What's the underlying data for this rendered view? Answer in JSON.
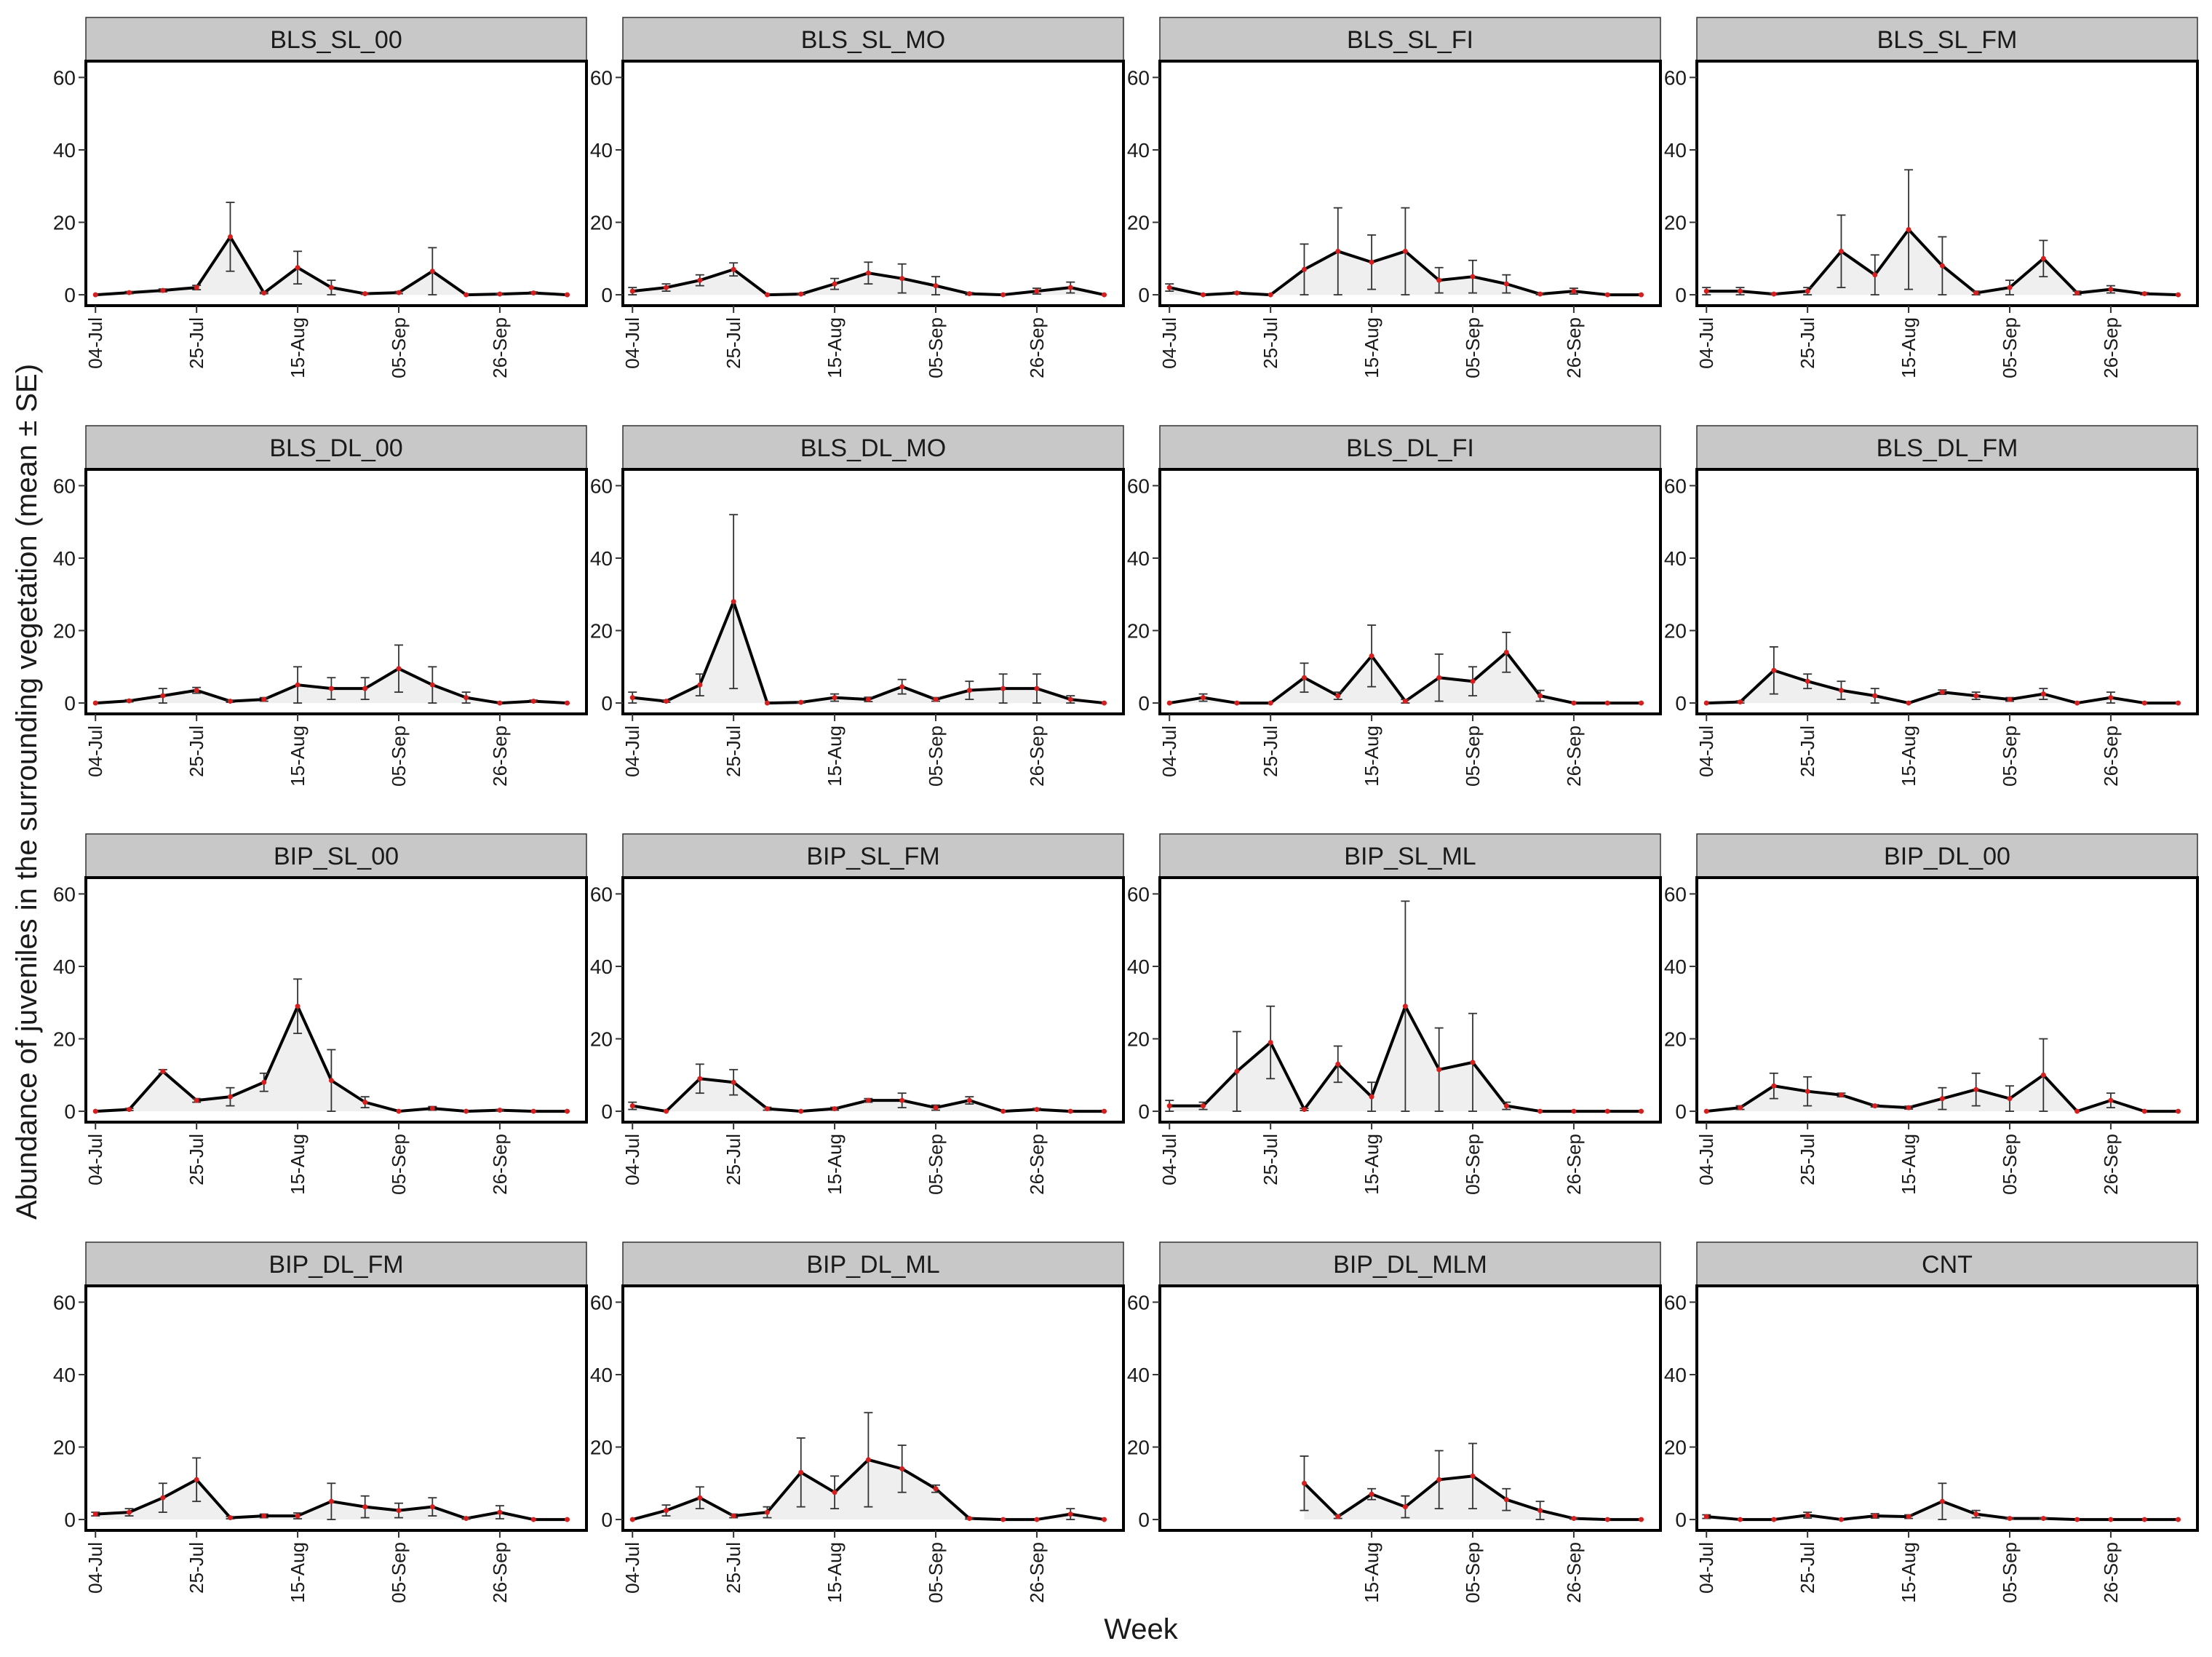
{
  "chart_data": {
    "type": "line",
    "xlabel": "Week",
    "ylabel": "Abundance of juveniles in the surrounding vegetation (mean ± SE)",
    "ylim": [
      0,
      60
    ],
    "yticks": [
      0,
      20,
      40,
      60
    ],
    "x_unit": "date (2021-style weekly sampling, Jul–Oct)",
    "xticks": [
      "04-Jul",
      "25-Jul",
      "15-Aug",
      "05-Sep",
      "26-Sep"
    ],
    "xticks_last_panel_row_exception": {
      "BIP_DL_MLM": [
        "15-Aug",
        "05-Sep",
        "26-Sep"
      ]
    },
    "x_dates": [
      "04-Jul",
      "11-Jul",
      "18-Jul",
      "25-Jul",
      "01-Aug",
      "08-Aug",
      "15-Aug",
      "22-Aug",
      "29-Aug",
      "05-Sep",
      "12-Sep",
      "19-Sep",
      "26-Sep",
      "03-Oct",
      "10-Oct"
    ],
    "panels": [
      {
        "name": "BLS_SL_00",
        "x": [
          "04-Jul",
          "11-Jul",
          "18-Jul",
          "25-Jul",
          "01-Aug",
          "08-Aug",
          "15-Aug",
          "22-Aug",
          "29-Aug",
          "05-Sep",
          "12-Sep",
          "19-Sep",
          "26-Sep",
          "03-Oct",
          "10-Oct"
        ],
        "y": [
          0,
          0.6,
          1.2,
          2,
          16,
          0.5,
          7.5,
          2,
          0.3,
          0.6,
          6.5,
          0,
          0.2,
          0.5,
          0
        ],
        "se": [
          0,
          0.3,
          0.4,
          0.6,
          9.5,
          0.2,
          4.5,
          2,
          0.2,
          0.3,
          6.5,
          0,
          0.1,
          0.3,
          0
        ]
      },
      {
        "name": "BLS_SL_MO",
        "x": [
          "04-Jul",
          "11-Jul",
          "18-Jul",
          "25-Jul",
          "01-Aug",
          "08-Aug",
          "15-Aug",
          "22-Aug",
          "29-Aug",
          "05-Sep",
          "12-Sep",
          "19-Sep",
          "26-Sep",
          "03-Oct",
          "10-Oct"
        ],
        "y": [
          1,
          2,
          4,
          7,
          0,
          0.2,
          3,
          6,
          4.5,
          2.5,
          0.3,
          0,
          1,
          2,
          0
        ],
        "se": [
          1,
          1,
          1.5,
          1.8,
          0,
          0.2,
          1.5,
          3,
          4,
          2.5,
          0.3,
          0,
          0.8,
          1.5,
          0
        ]
      },
      {
        "name": "BLS_SL_FI",
        "x": [
          "04-Jul",
          "11-Jul",
          "18-Jul",
          "25-Jul",
          "01-Aug",
          "08-Aug",
          "15-Aug",
          "22-Aug",
          "29-Aug",
          "05-Sep",
          "12-Sep",
          "19-Sep",
          "26-Sep",
          "03-Oct",
          "10-Oct"
        ],
        "y": [
          2,
          0,
          0.5,
          0,
          7,
          12,
          9,
          12,
          4,
          5,
          3,
          0.2,
          1,
          0,
          0
        ],
        "se": [
          1,
          0,
          0.3,
          0,
          7,
          12,
          7.5,
          12,
          3.5,
          4.5,
          2.5,
          0.2,
          0.8,
          0,
          0
        ]
      },
      {
        "name": "BLS_SL_FM",
        "x": [
          "04-Jul",
          "11-Jul",
          "18-Jul",
          "25-Jul",
          "01-Aug",
          "08-Aug",
          "15-Aug",
          "22-Aug",
          "29-Aug",
          "05-Sep",
          "12-Sep",
          "19-Sep",
          "26-Sep",
          "03-Oct",
          "10-Oct"
        ],
        "y": [
          1,
          1,
          0.2,
          1,
          12,
          5.5,
          18,
          8,
          0.5,
          2,
          10,
          0.5,
          1.5,
          0.3,
          0
        ],
        "se": [
          1,
          1,
          0.2,
          1,
          10,
          5.5,
          16.5,
          8,
          0.5,
          2,
          5,
          0.5,
          1,
          0.3,
          0
        ]
      },
      {
        "name": "BLS_DL_00",
        "x": [
          "04-Jul",
          "11-Jul",
          "18-Jul",
          "25-Jul",
          "01-Aug",
          "08-Aug",
          "15-Aug",
          "22-Aug",
          "29-Aug",
          "05-Sep",
          "12-Sep",
          "19-Sep",
          "26-Sep",
          "03-Oct",
          "10-Oct"
        ],
        "y": [
          0,
          0.6,
          2,
          3.5,
          0.5,
          1,
          5,
          4,
          4,
          9.5,
          5,
          1.5,
          0,
          0.5,
          0
        ],
        "se": [
          0,
          0.3,
          2,
          0.8,
          0.3,
          0.5,
          5,
          3,
          3,
          6.5,
          5,
          1.5,
          0,
          0.3,
          0
        ]
      },
      {
        "name": "BLS_DL_MO",
        "x": [
          "04-Jul",
          "11-Jul",
          "18-Jul",
          "25-Jul",
          "01-Aug",
          "08-Aug",
          "15-Aug",
          "22-Aug",
          "29-Aug",
          "05-Sep",
          "12-Sep",
          "19-Sep",
          "26-Sep",
          "03-Oct",
          "10-Oct"
        ],
        "y": [
          1.5,
          0.5,
          5,
          28,
          0,
          0.2,
          1.5,
          1,
          4.5,
          1,
          3.5,
          4,
          4,
          1,
          0
        ],
        "se": [
          1.5,
          0.3,
          3,
          24,
          0,
          0.2,
          1,
          0.6,
          2,
          0.5,
          2.5,
          4,
          4,
          1,
          0
        ]
      },
      {
        "name": "BLS_DL_FI",
        "x": [
          "04-Jul",
          "11-Jul",
          "18-Jul",
          "25-Jul",
          "01-Aug",
          "08-Aug",
          "15-Aug",
          "22-Aug",
          "29-Aug",
          "05-Sep",
          "12-Sep",
          "19-Sep",
          "26-Sep",
          "03-Oct",
          "10-Oct"
        ],
        "y": [
          0,
          1.5,
          0,
          0,
          7,
          2,
          13,
          0.5,
          7,
          6,
          14,
          2,
          0,
          0,
          0
        ],
        "se": [
          0,
          1,
          0,
          0,
          4,
          1,
          8.5,
          0.5,
          6.5,
          4,
          5.5,
          1.5,
          0,
          0,
          0
        ]
      },
      {
        "name": "BLS_DL_FM",
        "x": [
          "04-Jul",
          "11-Jul",
          "18-Jul",
          "25-Jul",
          "01-Aug",
          "08-Aug",
          "15-Aug",
          "22-Aug",
          "29-Aug",
          "05-Sep",
          "12-Sep",
          "19-Sep",
          "26-Sep",
          "03-Oct",
          "10-Oct"
        ],
        "y": [
          0,
          0.3,
          9,
          6,
          3.5,
          2,
          0,
          3,
          2,
          1,
          2.5,
          0,
          1.5,
          0,
          0
        ],
        "se": [
          0,
          0.3,
          6.5,
          2,
          2.5,
          2,
          0,
          0.6,
          1,
          0.5,
          1.5,
          0,
          1.5,
          0,
          0
        ]
      },
      {
        "name": "BIP_SL_00",
        "x": [
          "04-Jul",
          "11-Jul",
          "18-Jul",
          "25-Jul",
          "01-Aug",
          "08-Aug",
          "15-Aug",
          "22-Aug",
          "29-Aug",
          "05-Sep",
          "12-Sep",
          "19-Sep",
          "26-Sep",
          "03-Oct",
          "10-Oct"
        ],
        "y": [
          0,
          0.5,
          11,
          3,
          4,
          8,
          29,
          8.5,
          2.5,
          0,
          0.8,
          0,
          0.3,
          0,
          0
        ],
        "se": [
          0,
          0.3,
          0.5,
          0.5,
          2.5,
          2.5,
          7.5,
          8.5,
          1.5,
          0,
          0.5,
          0,
          0.2,
          0,
          0
        ]
      },
      {
        "name": "BIP_SL_FM",
        "x": [
          "04-Jul",
          "11-Jul",
          "18-Jul",
          "25-Jul",
          "01-Aug",
          "08-Aug",
          "15-Aug",
          "22-Aug",
          "29-Aug",
          "05-Sep",
          "12-Sep",
          "19-Sep",
          "26-Sep",
          "03-Oct",
          "10-Oct"
        ],
        "y": [
          1.5,
          0,
          9,
          8,
          0.7,
          0,
          0.7,
          3,
          3,
          1,
          3,
          0,
          0.5,
          0,
          0
        ],
        "se": [
          1,
          0,
          4,
          3.5,
          0.4,
          0,
          0.4,
          0.5,
          2,
          0.7,
          1,
          0,
          0.3,
          0,
          0
        ]
      },
      {
        "name": "BIP_SL_ML",
        "x": [
          "04-Jul",
          "11-Jul",
          "18-Jul",
          "25-Jul",
          "01-Aug",
          "08-Aug",
          "15-Aug",
          "22-Aug",
          "29-Aug",
          "05-Sep",
          "12-Sep",
          "19-Sep",
          "26-Sep",
          "03-Oct",
          "10-Oct"
        ],
        "y": [
          1.5,
          1.5,
          11,
          19,
          0.5,
          13,
          4,
          29,
          11.5,
          13.5,
          1.5,
          0,
          0,
          0,
          0
        ],
        "se": [
          1.5,
          1,
          11,
          10,
          0.3,
          5,
          4,
          29,
          11.5,
          13.5,
          1,
          0,
          0,
          0,
          0
        ]
      },
      {
        "name": "BIP_DL_00",
        "x": [
          "04-Jul",
          "11-Jul",
          "18-Jul",
          "25-Jul",
          "01-Aug",
          "08-Aug",
          "15-Aug",
          "22-Aug",
          "29-Aug",
          "05-Sep",
          "12-Sep",
          "19-Sep",
          "26-Sep",
          "03-Oct",
          "10-Oct"
        ],
        "y": [
          0,
          1,
          7,
          5.5,
          4.5,
          1.5,
          1,
          3.5,
          6,
          3.5,
          10,
          0,
          3,
          0,
          0
        ],
        "se": [
          0,
          0.5,
          3.5,
          4,
          0.5,
          0.3,
          0.4,
          3,
          4.5,
          3.5,
          10,
          0,
          2,
          0,
          0
        ]
      },
      {
        "name": "BIP_DL_FM",
        "x": [
          "04-Jul",
          "11-Jul",
          "18-Jul",
          "25-Jul",
          "01-Aug",
          "08-Aug",
          "15-Aug",
          "22-Aug",
          "29-Aug",
          "05-Sep",
          "12-Sep",
          "19-Sep",
          "26-Sep",
          "03-Oct",
          "10-Oct"
        ],
        "y": [
          1.5,
          2,
          6,
          11,
          0.5,
          1,
          1,
          5,
          3.5,
          2.5,
          3.5,
          0.3,
          2,
          0,
          0
        ],
        "se": [
          0.5,
          1,
          4,
          6,
          0.3,
          0.5,
          0.8,
          5,
          3,
          2,
          2.5,
          0.2,
          1.8,
          0,
          0
        ]
      },
      {
        "name": "BIP_DL_ML",
        "x": [
          "04-Jul",
          "11-Jul",
          "18-Jul",
          "25-Jul",
          "01-Aug",
          "08-Aug",
          "15-Aug",
          "22-Aug",
          "29-Aug",
          "05-Sep",
          "12-Sep",
          "19-Sep",
          "26-Sep",
          "03-Oct",
          "10-Oct"
        ],
        "y": [
          0,
          2.5,
          6,
          1,
          2,
          13,
          7.5,
          16.5,
          14,
          8.5,
          0.3,
          0,
          0,
          1.5,
          0
        ],
        "se": [
          0,
          1.5,
          3,
          0.5,
          1.5,
          9.5,
          4.5,
          13,
          6.5,
          1,
          0.2,
          0,
          0,
          1.5,
          0
        ]
      },
      {
        "name": "BIP_DL_MLM",
        "x": [
          "01-Aug",
          "08-Aug",
          "15-Aug",
          "22-Aug",
          "29-Aug",
          "05-Sep",
          "12-Sep",
          "19-Sep",
          "26-Sep",
          "03-Oct",
          "10-Oct"
        ],
        "y": [
          10,
          0.8,
          7,
          3.5,
          11,
          12,
          5.5,
          2.5,
          0.3,
          0,
          0
        ],
        "se": [
          7.5,
          0.5,
          1.5,
          3,
          8,
          9,
          3,
          2.5,
          0.2,
          0,
          0
        ]
      },
      {
        "name": "CNT",
        "x": [
          "04-Jul",
          "11-Jul",
          "18-Jul",
          "25-Jul",
          "01-Aug",
          "08-Aug",
          "15-Aug",
          "22-Aug",
          "29-Aug",
          "05-Sep",
          "12-Sep",
          "19-Sep",
          "26-Sep",
          "03-Oct",
          "10-Oct"
        ],
        "y": [
          0.8,
          0,
          0,
          1.2,
          0,
          1,
          0.8,
          5,
          1.5,
          0.3,
          0.3,
          0,
          0,
          0,
          0
        ],
        "se": [
          0.5,
          0,
          0,
          0.8,
          0,
          0.6,
          0.5,
          5,
          1,
          0.2,
          0.2,
          0,
          0,
          0,
          0
        ]
      }
    ],
    "grid": false,
    "legend": "none",
    "colors": {
      "line": "#000000",
      "point": "#d62020",
      "area": "#efefef",
      "strip": "#c8c8c8",
      "errorbar": "#333333"
    }
  }
}
